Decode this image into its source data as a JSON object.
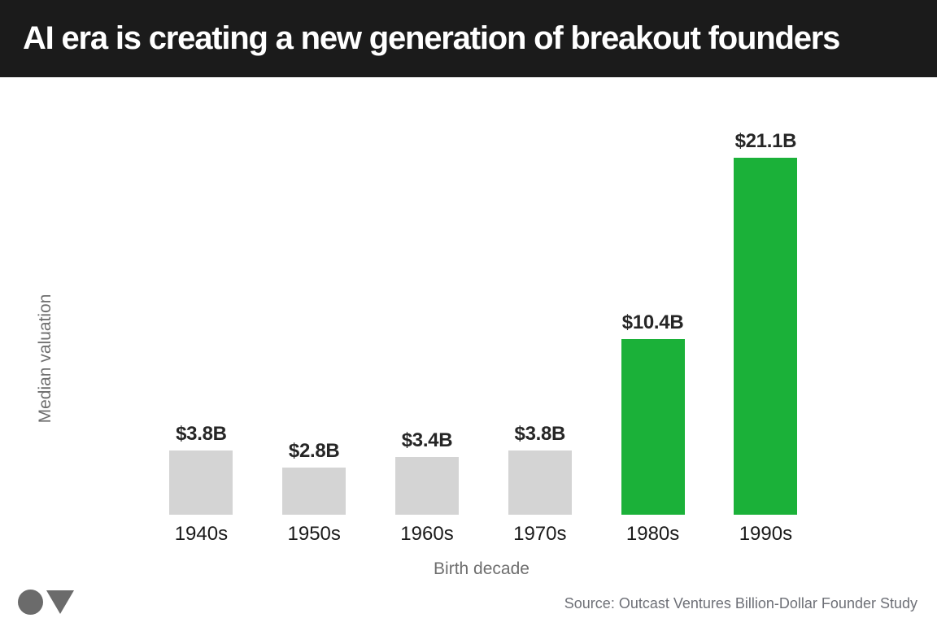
{
  "header": {
    "title": "AI era is creating a new generation of breakout founders",
    "background_color": "#1b1b1b",
    "text_color": "#ffffff"
  },
  "chart_data": {
    "type": "bar",
    "title": "AI era is creating a new generation of breakout founders",
    "categories": [
      "1940s",
      "1950s",
      "1960s",
      "1970s",
      "1980s",
      "1990s"
    ],
    "values": [
      3.8,
      2.8,
      3.4,
      3.8,
      10.4,
      21.1
    ],
    "value_labels": [
      "$3.8B",
      "$2.8B",
      "$3.4B",
      "$3.8B",
      "$10.4B",
      "$21.1B"
    ],
    "bar_colors": [
      "#d4d4d4",
      "#d4d4d4",
      "#d4d4d4",
      "#d4d4d4",
      "#1bb139",
      "#1bb139"
    ],
    "xlabel": "Birth decade",
    "ylabel": "Median valuation",
    "ylim": [
      0,
      21.1
    ],
    "grid": false,
    "legend": null,
    "highlight_color": "#1bb139",
    "muted_color": "#d4d4d4"
  },
  "footer": {
    "source": "Source: Outcast Ventures Billion-Dollar Founder Study",
    "logo_shapes": [
      "circle",
      "triangle-down"
    ],
    "logo_color": "#6b6b6b"
  }
}
